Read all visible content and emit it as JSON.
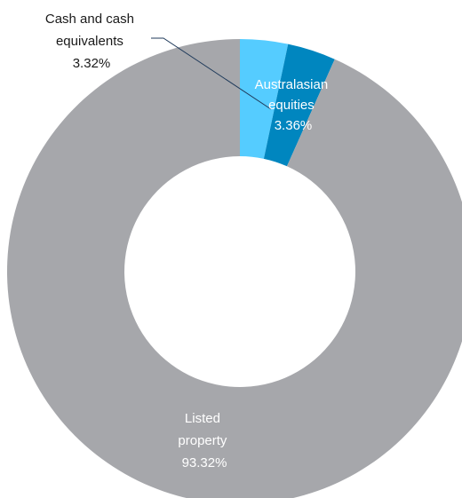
{
  "chart_data": {
    "type": "pie",
    "donut": true,
    "title": "",
    "slices": [
      {
        "label_lines": [
          "Cash and cash",
          "equivalents"
        ],
        "value_label": "3.32%",
        "value": 3.32,
        "color": "#55ccff",
        "label_color": "#1a1a1a",
        "label_position": "outside-top-left-with-leader"
      },
      {
        "label_lines": [
          "Australasian",
          "equities"
        ],
        "value_label": "3.36%",
        "value": 3.36,
        "color": "#0086bf",
        "label_color": "#ffffff",
        "label_position": "inside"
      },
      {
        "label_lines": [
          "Listed",
          "property"
        ],
        "value_label": "93.32%",
        "value": 93.32,
        "color": "#a6a7ab",
        "label_color": "#ffffff",
        "label_position": "inside"
      }
    ],
    "leader_line_color": "#1f3a5a"
  }
}
